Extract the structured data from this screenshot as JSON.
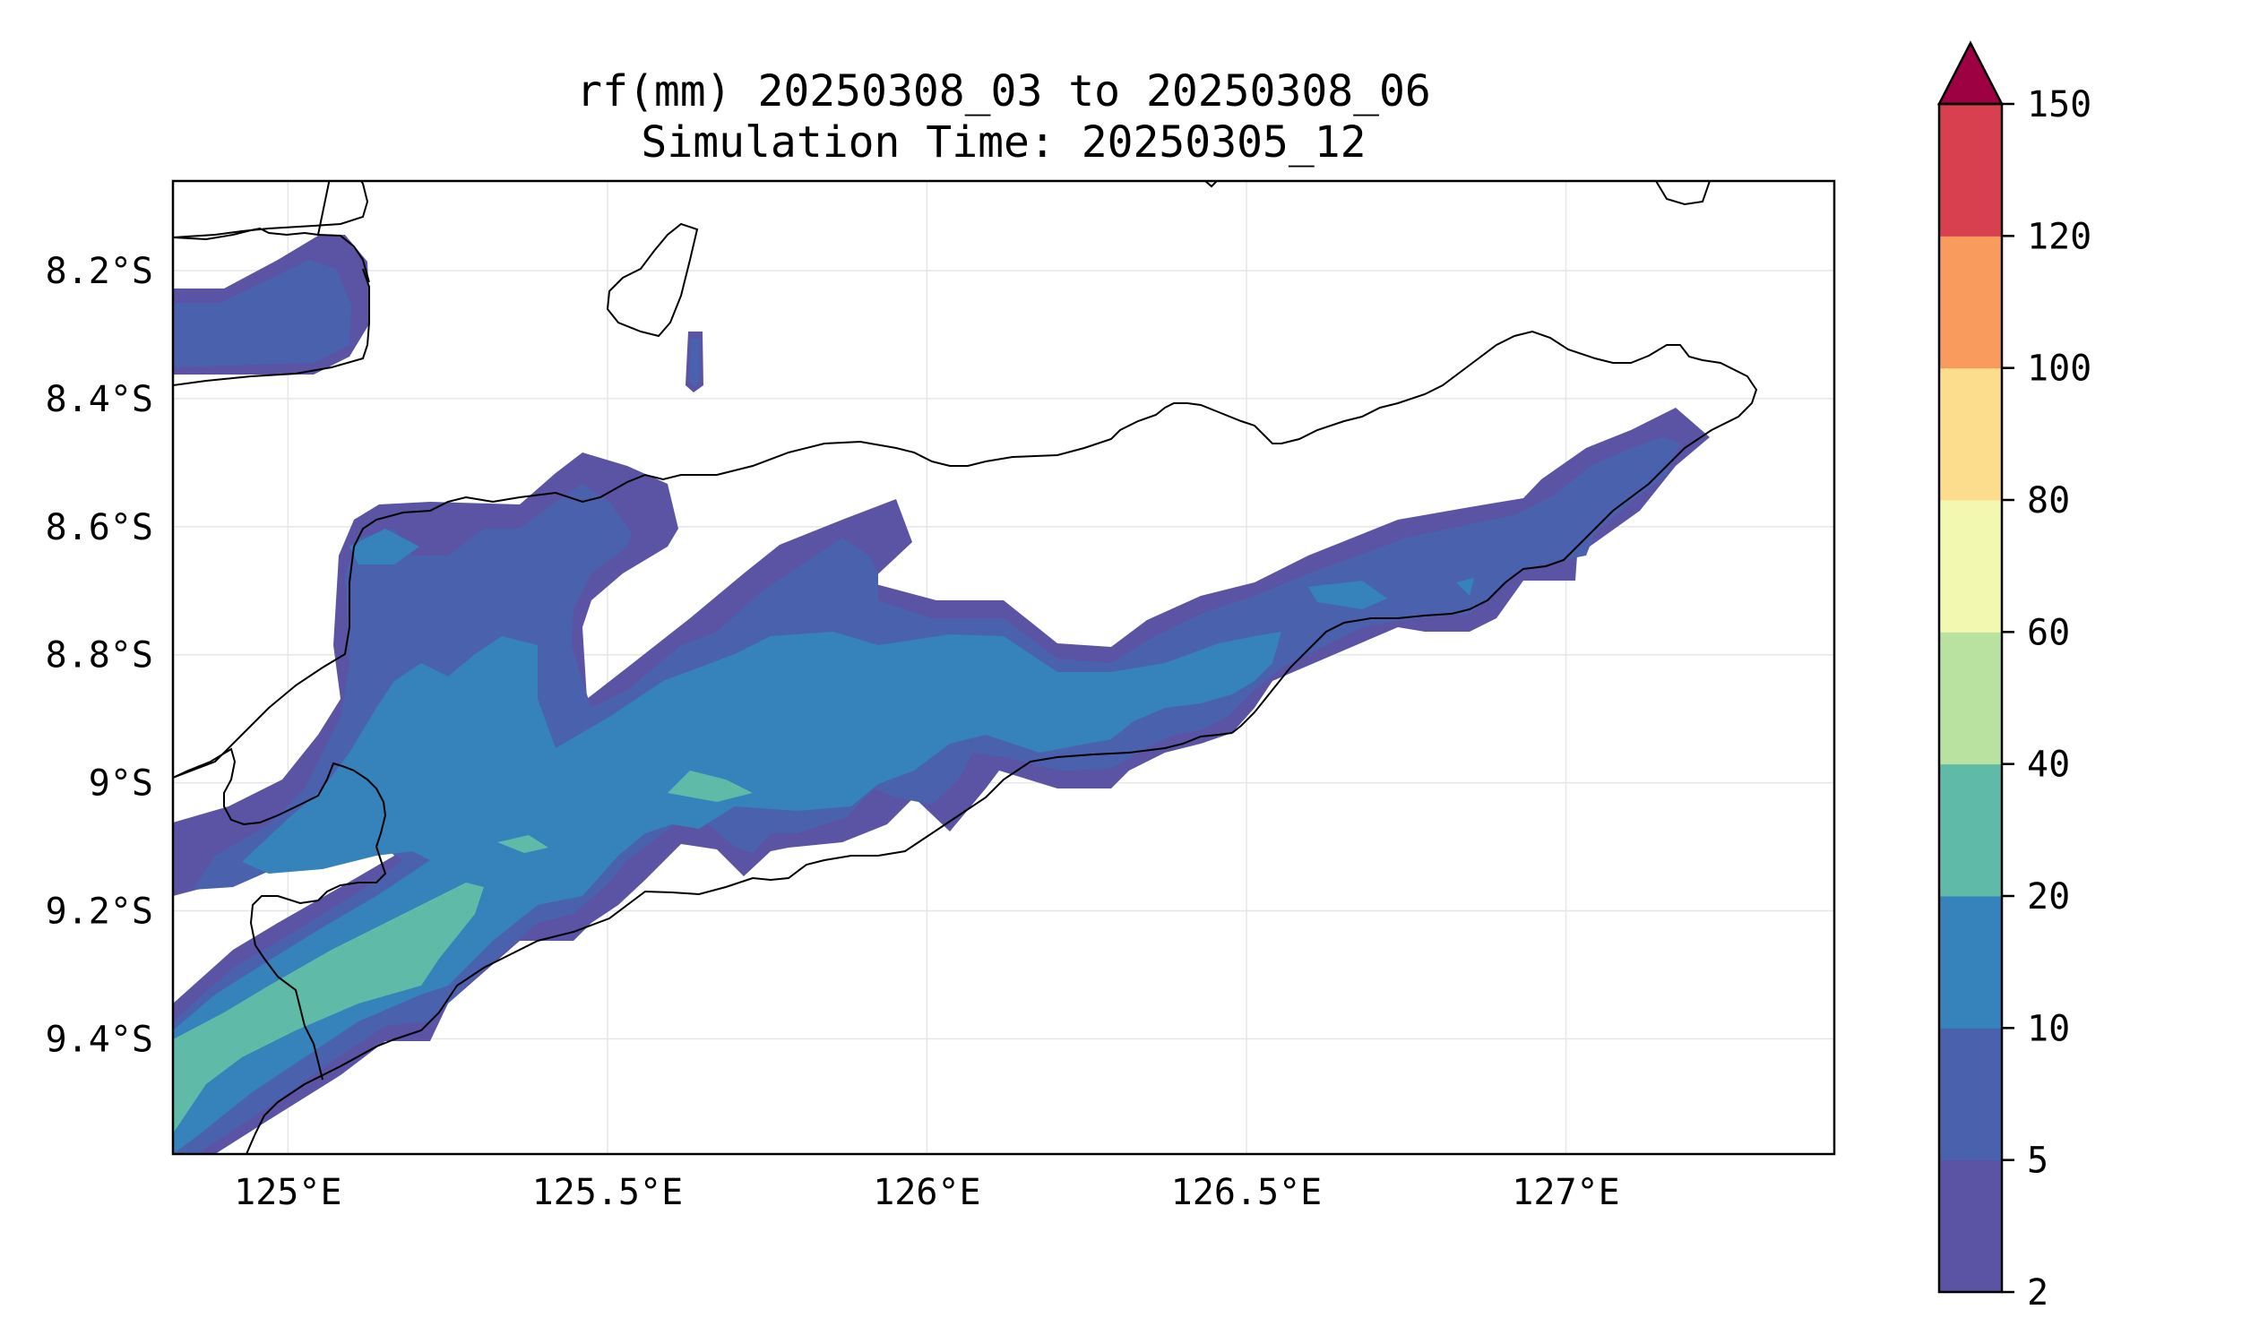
{
  "title": {
    "line1": "rf(mm) 20250308_03 to 20250308_06",
    "line2": "Simulation Time: 20250305_12"
  },
  "map": {
    "lon_range": [
      124.82,
      127.42
    ],
    "lat_range": [
      -9.58,
      -8.06
    ],
    "x_ticks": [
      "125°E",
      "125.5°E",
      "126°E",
      "126.5°E",
      "127°E"
    ],
    "x_tick_values": [
      125.0,
      125.5,
      126.0,
      126.5,
      127.0
    ],
    "y_ticks": [
      "8.2°S",
      "8.4°S",
      "8.6°S",
      "8.8°S",
      "9°S",
      "9.2°S",
      "9.4°S"
    ],
    "y_tick_values": [
      -8.2,
      -8.4,
      -8.6,
      -8.8,
      -9.0,
      -9.2,
      -9.4
    ],
    "gridlines": true,
    "coastline_color": "#000000"
  },
  "colorbar": {
    "levels": [
      "2",
      "5",
      "10",
      "20",
      "40",
      "60",
      "80",
      "100",
      "120",
      "150"
    ],
    "colors": [
      "#5b53a4",
      "#4a62ad",
      "#3682ba",
      "#5fbaa8",
      "#b9e1a0",
      "#f3f8b0",
      "#fbdd8d",
      "#f89b5c",
      "#d8404f"
    ],
    "extend_color": "#9e0142",
    "extend": "max"
  }
}
